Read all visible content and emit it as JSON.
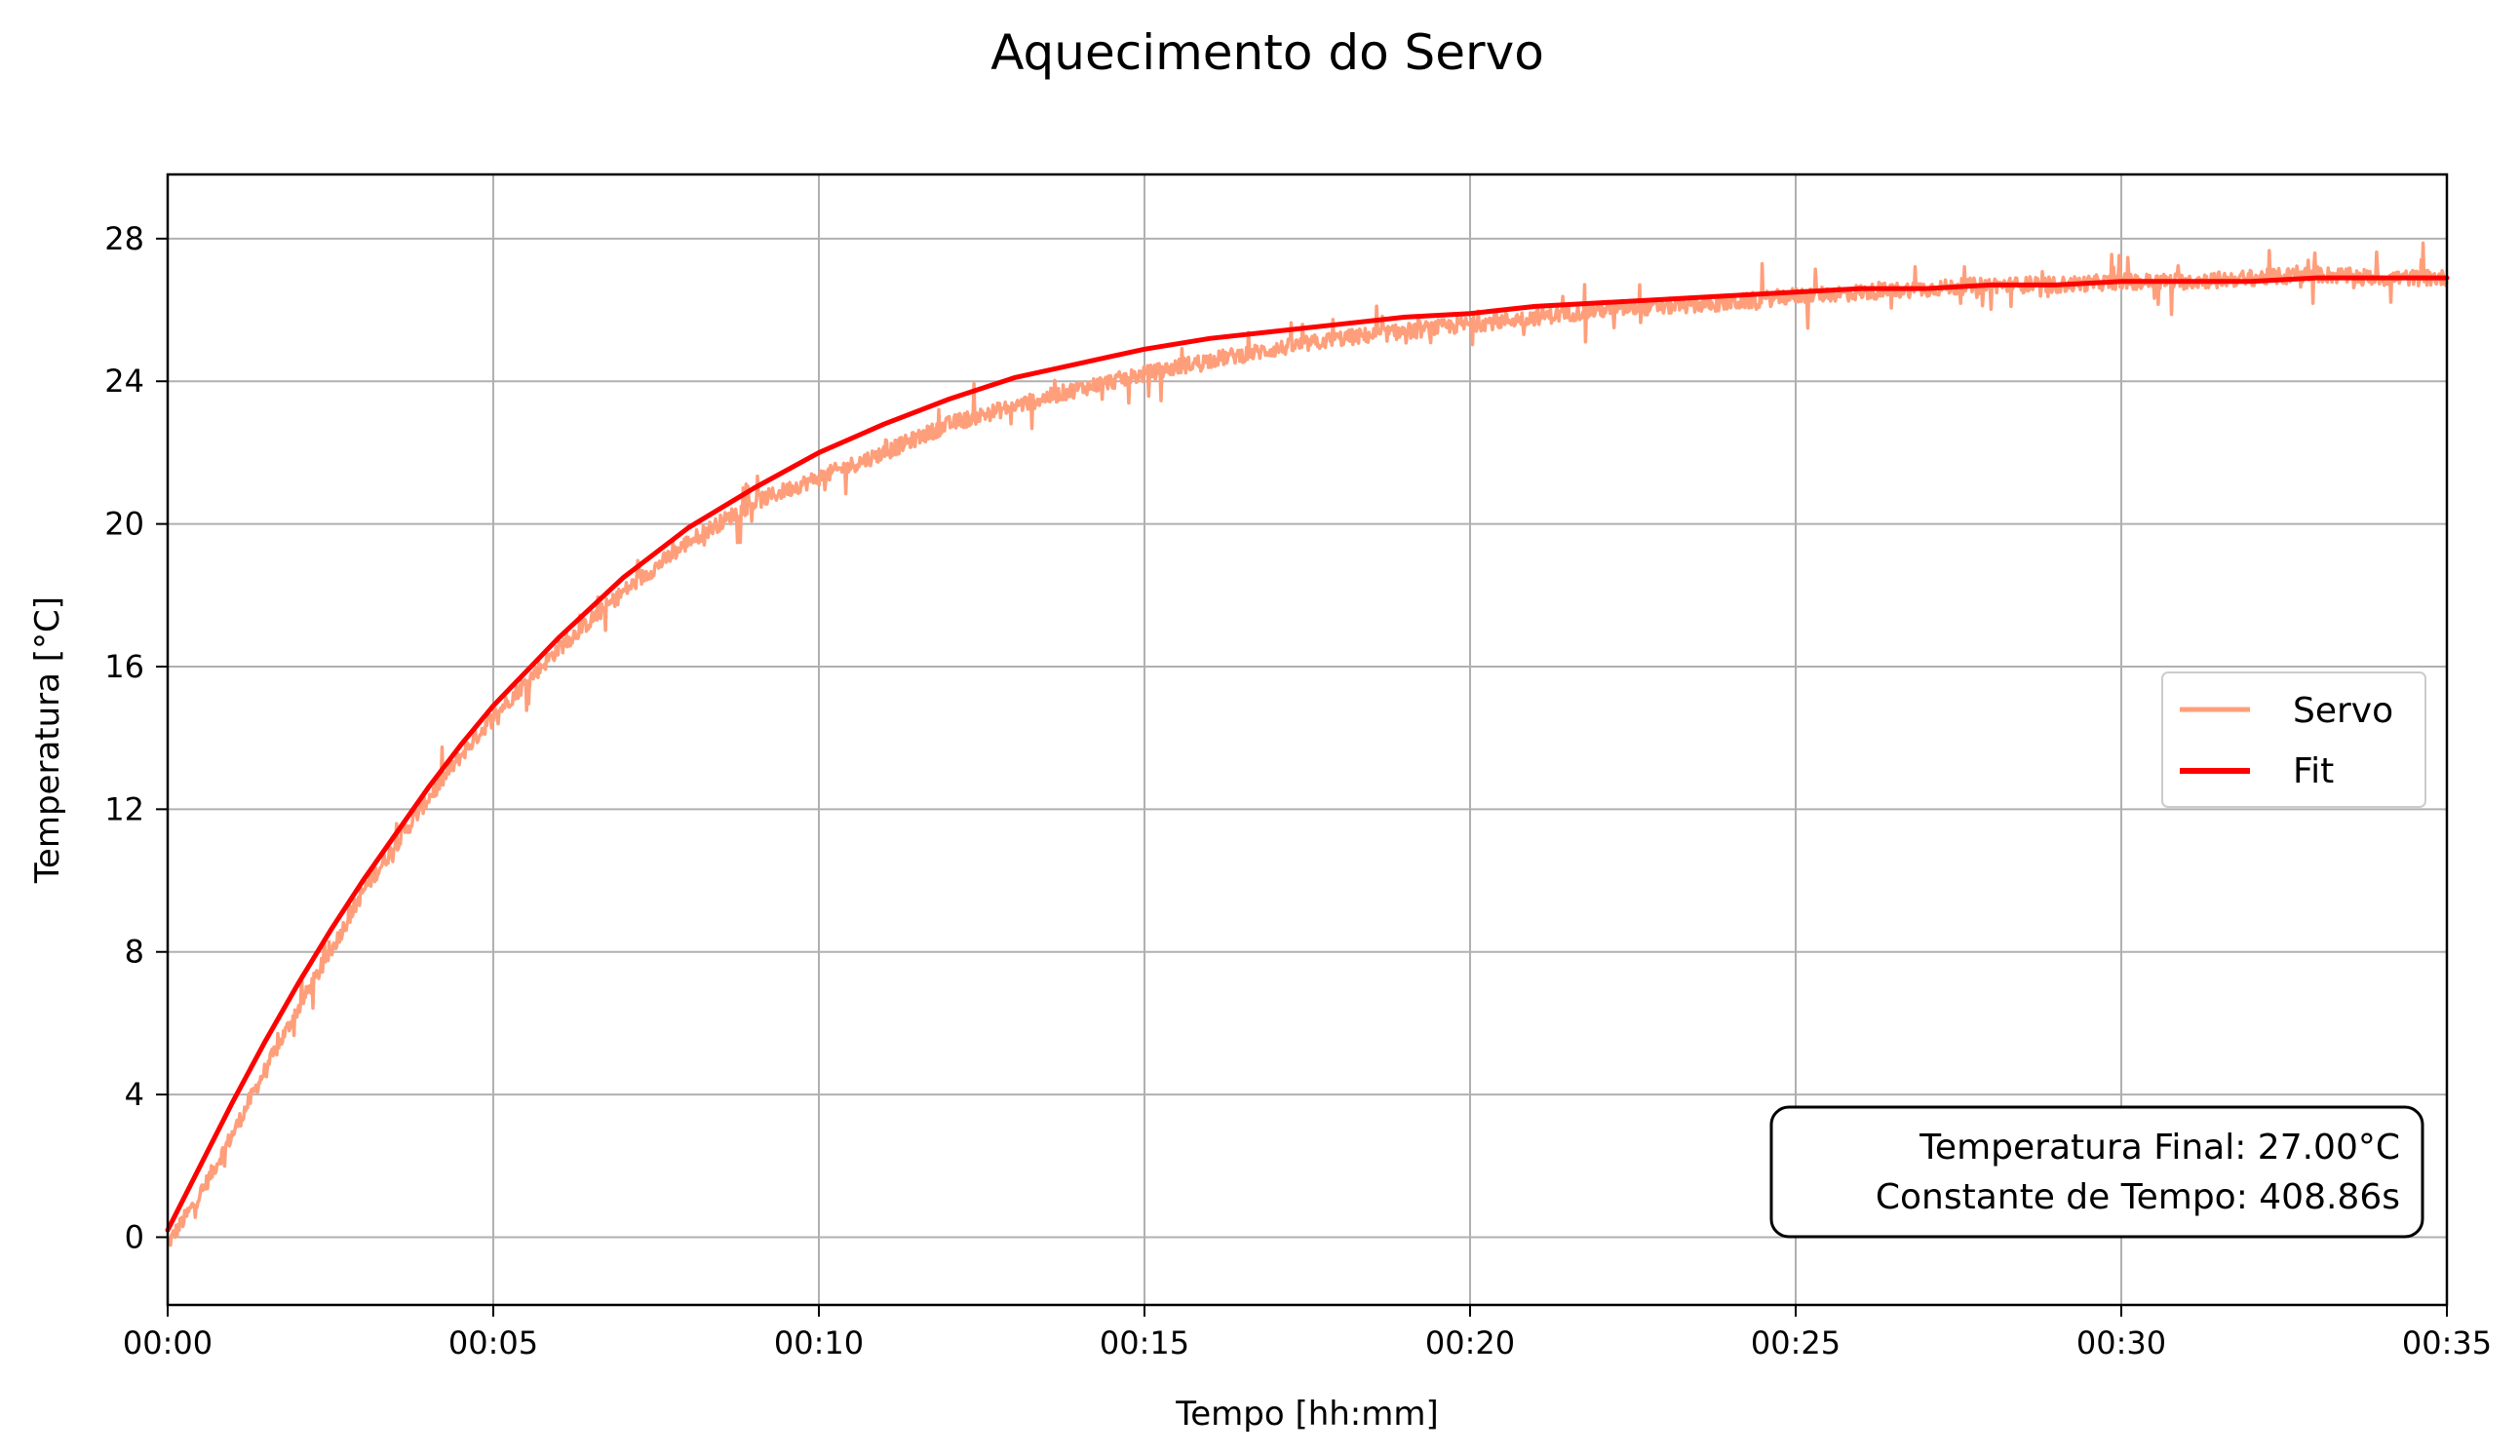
{
  "chart_data": {
    "type": "line",
    "title": "Aquecimento do Servo",
    "xlabel": "Tempo [hh:mm]",
    "ylabel": "Temperatura [°C]",
    "xlim": [
      0,
      35
    ],
    "ylim": [
      -1.9,
      29.8
    ],
    "x_unit": "minutes",
    "x_ticks": [
      0,
      5,
      10,
      15,
      20,
      25,
      30,
      35
    ],
    "x_tick_labels": [
      "00:00",
      "00:05",
      "00:10",
      "00:15",
      "00:20",
      "00:25",
      "00:30",
      "00:35"
    ],
    "y_ticks": [
      0,
      4,
      8,
      12,
      16,
      20,
      24,
      28
    ],
    "y_tick_labels": [
      "0",
      "4",
      "8",
      "12",
      "16",
      "20",
      "24",
      "28"
    ],
    "grid": true,
    "legend_position": "center-right",
    "series": [
      {
        "name": "Servo",
        "color": "#ff9e7a",
        "style": "noisy-measurement",
        "x": [
          0,
          0.5,
          1,
          1.5,
          2,
          2.5,
          3,
          3.5,
          4,
          4.5,
          5,
          6,
          7,
          8,
          9,
          10,
          11,
          12,
          13,
          14,
          15,
          16,
          17,
          18,
          19,
          20,
          21,
          22,
          23,
          24,
          25,
          26,
          27,
          28,
          29,
          30,
          31,
          32,
          33,
          34,
          35
        ],
        "y": [
          -0.2,
          1.2,
          2.9,
          4.7,
          6.4,
          8.0,
          9.7,
          11.0,
          12.3,
          13.5,
          14.6,
          16.5,
          18.1,
          19.5,
          20.6,
          21.3,
          22.0,
          22.8,
          23.3,
          23.8,
          24.2,
          24.6,
          24.9,
          25.2,
          25.4,
          25.6,
          25.8,
          26.0,
          26.1,
          26.2,
          26.4,
          26.5,
          26.6,
          26.7,
          26.7,
          26.8,
          26.8,
          26.9,
          27.0,
          26.9,
          26.9
        ]
      },
      {
        "name": "Fit",
        "color": "#ff0000",
        "style": "exponential-fit",
        "x": [
          0,
          0.5,
          1,
          1.5,
          2,
          2.5,
          3,
          3.5,
          4,
          4.5,
          5,
          6,
          7,
          8,
          9,
          10,
          11,
          12,
          13,
          14,
          15,
          16,
          17,
          18,
          19,
          20,
          21,
          22,
          23,
          24,
          25,
          26,
          27,
          28,
          29,
          30,
          31,
          32,
          33,
          34,
          35
        ],
        "y": [
          0.2,
          2.0,
          3.8,
          5.5,
          7.1,
          8.6,
          10.0,
          11.3,
          12.6,
          13.8,
          14.9,
          16.8,
          18.5,
          19.9,
          21.0,
          22.0,
          22.8,
          23.5,
          24.1,
          24.5,
          24.9,
          25.2,
          25.4,
          25.6,
          25.8,
          25.9,
          26.1,
          26.2,
          26.3,
          26.4,
          26.5,
          26.6,
          26.6,
          26.7,
          26.7,
          26.8,
          26.8,
          26.8,
          26.9,
          26.9,
          26.9
        ]
      }
    ],
    "annotation": {
      "line1": "Temperatura Final: 27.00°C",
      "line2": "Constante de Tempo: 408.86s",
      "position": "bottom-right"
    }
  }
}
